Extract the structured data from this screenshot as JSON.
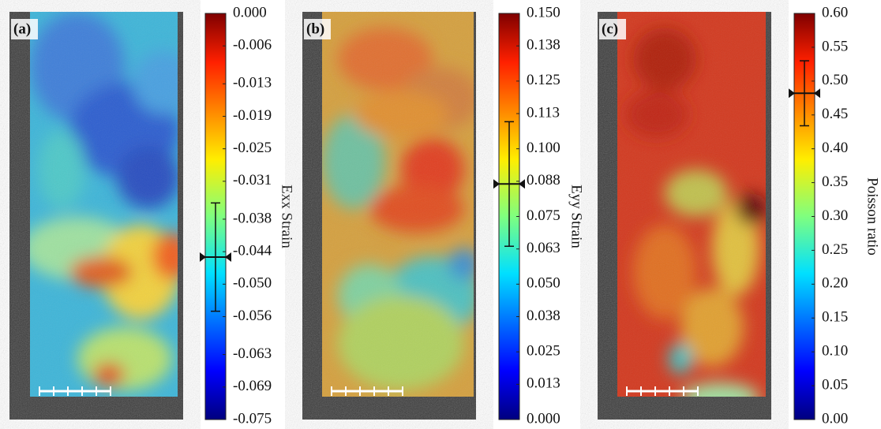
{
  "chart_data": [
    {
      "type": "colorbar",
      "panel_label": "(a)",
      "axis_label": "Exx Strain",
      "ylim": [
        -0.075,
        0
      ],
      "yticks": [
        {
          "value": 0,
          "label": "0.000"
        },
        -0.006,
        -0.013,
        -0.019,
        -0.025,
        -0.031,
        -0.038,
        -0.044,
        {
          "value": -0.05,
          "label": "-0.050"
        },
        -0.056,
        -0.063,
        -0.069,
        -0.075
      ],
      "mean": -0.045,
      "error": 0.01
    },
    {
      "type": "colorbar",
      "panel_label": "(b)",
      "axis_label": "Eyy Strain",
      "ylim": [
        0,
        0.15
      ],
      "yticks": [
        {
          "value": 0,
          "label": "0.000"
        },
        0.013,
        0.025,
        0.038,
        {
          "value": 0.05,
          "label": "0.050"
        },
        0.063,
        0.075,
        0.088,
        {
          "value": 0.1,
          "label": "0.100"
        },
        0.113,
        0.125,
        0.138,
        {
          "value": 0.15,
          "label": "0.150"
        }
      ],
      "mean": 0.087,
      "error": 0.023
    },
    {
      "type": "colorbar",
      "panel_label": "(c)",
      "axis_label": "Poisson ratio",
      "ylim": [
        0,
        0.6
      ],
      "yticks": [
        {
          "value": 0,
          "label": "0.00"
        },
        0.05,
        {
          "value": 0.1,
          "label": "0.10"
        },
        0.15,
        {
          "value": 0.2,
          "label": "0.20"
        },
        0.25,
        {
          "value": 0.3,
          "label": "0.30"
        },
        0.35,
        {
          "value": 0.4,
          "label": "0.40"
        },
        0.45,
        {
          "value": 0.5,
          "label": "0.50"
        },
        0.55,
        {
          "value": 0.6,
          "label": "0.60"
        }
      ],
      "mean": 0.482,
      "error": 0.048
    }
  ]
}
